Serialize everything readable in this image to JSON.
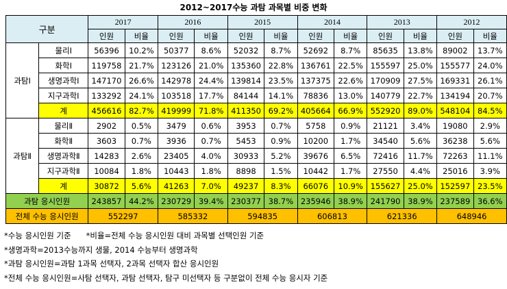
{
  "title": "2012~2017수능 과탐 과목별 비중 변화",
  "header": {
    "group_label": "구분",
    "years": [
      "2017",
      "2016",
      "2015",
      "2014",
      "2013",
      "2012"
    ],
    "count_label": "인원",
    "ratio_label": "비율"
  },
  "groups": [
    {
      "name": "과탐Ⅰ",
      "rows": [
        {
          "subject": "물리Ⅰ",
          "values": [
            "56396",
            "10.2%",
            "50377",
            "8.6%",
            "52032",
            "8.7%",
            "52692",
            "8.7%",
            "85635",
            "13.8%",
            "89002",
            "13.7%"
          ]
        },
        {
          "subject": "화학Ⅰ",
          "values": [
            "119758",
            "21.7%",
            "123126",
            "21.0%",
            "135360",
            "22.8%",
            "136761",
            "22.5%",
            "155597",
            "25.0%",
            "155577",
            "24.0%"
          ]
        },
        {
          "subject": "생명과학Ⅰ",
          "values": [
            "147170",
            "26.6%",
            "142978",
            "24.4%",
            "139814",
            "23.5%",
            "137375",
            "22.6%",
            "170909",
            "27.5%",
            "169331",
            "26.1%"
          ]
        },
        {
          "subject": "지구과학Ⅰ",
          "values": [
            "133292",
            "24.1%",
            "103518",
            "17.7%",
            "84144",
            "14.1%",
            "78836",
            "13.0%",
            "140779",
            "22.7%",
            "134194",
            "20.7%"
          ]
        },
        {
          "subject": "계",
          "total": true,
          "values": [
            "456616",
            "82.7%",
            "419999",
            "71.8%",
            "411350",
            "69.2%",
            "405664",
            "66.9%",
            "552920",
            "89.0%",
            "548104",
            "84.5%"
          ]
        }
      ]
    },
    {
      "name": "과탐Ⅱ",
      "rows": [
        {
          "subject": "물리Ⅱ",
          "values": [
            "2902",
            "0.5%",
            "3479",
            "0.6%",
            "3953",
            "0.7%",
            "5758",
            "0.9%",
            "21121",
            "3.4%",
            "19080",
            "2.9%"
          ]
        },
        {
          "subject": "화학Ⅱ",
          "values": [
            "3603",
            "0.7%",
            "3936",
            "0.7%",
            "5453",
            "0.9%",
            "10200",
            "1.7%",
            "34540",
            "5.6%",
            "36238",
            "5.6%"
          ]
        },
        {
          "subject": "생명과학Ⅱ",
          "values": [
            "14283",
            "2.6%",
            "23405",
            "4.0%",
            "30933",
            "5.2%",
            "39676",
            "6.5%",
            "72416",
            "11.7%",
            "72263",
            "11.1%"
          ]
        },
        {
          "subject": "지구과학Ⅱ",
          "values": [
            "10084",
            "1.8%",
            "10443",
            "1.8%",
            "8898",
            "1.5%",
            "10442",
            "1.7%",
            "27550",
            "4.4%",
            "25016",
            "3.9%"
          ]
        },
        {
          "subject": "계",
          "total": true,
          "values": [
            "30872",
            "5.6%",
            "41263",
            "7.0%",
            "49237",
            "8.3%",
            "66076",
            "10.9%",
            "155627",
            "25.0%",
            "152597",
            "23.5%"
          ]
        }
      ]
    }
  ],
  "science_total": {
    "label": "과탐 응시인원",
    "values": [
      "243857",
      "44.2%",
      "230729",
      "39.4%",
      "230377",
      "38.7%",
      "235946",
      "38.9%",
      "241790",
      "38.9%",
      "237589",
      "36.6%"
    ]
  },
  "all_total": {
    "label": "전체 수능 응시인원",
    "values": [
      "552297",
      "585332",
      "594835",
      "606813",
      "621336",
      "648946"
    ]
  },
  "notes": [
    "*수능 응시인원 기준      *비율=전체 수능 응시인원 대비 과목별 선택인원 기준",
    "*생명과학=2013수능까지 생물, 2014 수능부터 생명과학",
    "*과탐 응시인원=과탐 1과목 선택자, 2과목 선택자 합산 응시인원",
    "*전체 수능 응시인원=사탐 선택자, 과탐 선택자, 탐구 미선택자 등 구분없이 전체 수능 응시자 기준"
  ],
  "colors": {
    "header": "#dbeef4",
    "total_row": "#ffff00",
    "science_total": "#92d050",
    "all_total": "#ffc000"
  }
}
